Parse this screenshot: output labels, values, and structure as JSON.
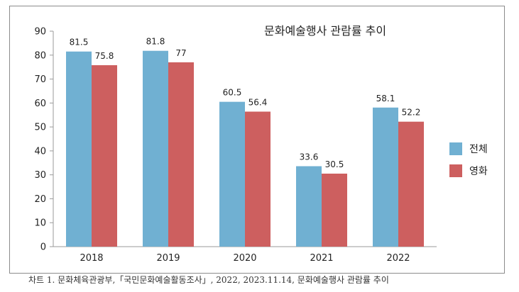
{
  "chart_data": {
    "type": "bar",
    "title": "문화예술행사 관람률 추이",
    "categories": [
      "2018",
      "2019",
      "2020",
      "2021",
      "2022"
    ],
    "series": [
      {
        "name": "전체",
        "values": [
          81.5,
          81.8,
          60.5,
          33.6,
          58.1
        ],
        "color": "#70b0d2"
      },
      {
        "name": "영화",
        "values": [
          75.8,
          77,
          56.4,
          30.5,
          52.2
        ],
        "color": "#cd5f5f"
      }
    ],
    "ylim": [
      0,
      90
    ],
    "yticks": [
      0,
      10,
      20,
      30,
      40,
      50,
      60,
      70,
      80,
      90
    ],
    "grid": false,
    "legend": "right",
    "xlabel": "",
    "ylabel": ""
  },
  "caption": "차트 1. 문화체육관광부,「국민문화예술활동조사」, 2022, 2023.11.14, 문화예술행사 관람률 추이"
}
